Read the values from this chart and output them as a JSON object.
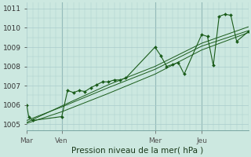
{
  "bg_color": "#cce8e0",
  "grid_color": "#aacccc",
  "line_color": "#1a5c1a",
  "marker_color": "#1a5c1a",
  "title": "Pression niveau de la mer( hPa )",
  "ylim": [
    1004.7,
    1011.3
  ],
  "yticks": [
    1005,
    1006,
    1007,
    1008,
    1009,
    1010,
    1011
  ],
  "day_labels": [
    "Mar",
    "Ven",
    "Mer",
    "Jeu"
  ],
  "day_positions": [
    0,
    18,
    66,
    90
  ],
  "total_hours": 114,
  "line1_x": [
    0,
    1,
    3,
    18,
    21,
    24,
    27,
    30,
    33,
    36,
    39,
    42,
    45,
    48,
    51,
    66,
    69,
    72,
    75,
    78,
    81,
    90,
    93,
    96,
    99,
    102,
    105,
    108,
    114
  ],
  "line1_y": [
    1006.0,
    1005.4,
    1005.2,
    1005.4,
    1006.75,
    1006.65,
    1006.75,
    1006.7,
    1006.9,
    1007.05,
    1007.2,
    1007.2,
    1007.3,
    1007.3,
    1007.4,
    1009.0,
    1008.55,
    1008.0,
    1008.1,
    1008.2,
    1007.6,
    1009.65,
    1009.55,
    1008.05,
    1010.6,
    1010.7,
    1010.65,
    1009.3,
    1009.8
  ],
  "line2_x": [
    0,
    18,
    42,
    66,
    90,
    114
  ],
  "line2_y": [
    1005.2,
    1005.9,
    1006.9,
    1007.85,
    1009.05,
    1009.85
  ],
  "line3_x": [
    0,
    18,
    42,
    66,
    90,
    114
  ],
  "line3_y": [
    1005.05,
    1005.65,
    1006.6,
    1007.6,
    1008.85,
    1009.75
  ],
  "line4_x": [
    0,
    18,
    42,
    66,
    90,
    114
  ],
  "line4_y": [
    1005.1,
    1005.95,
    1007.05,
    1008.0,
    1009.2,
    1010.05
  ],
  "vline_positions": [
    18,
    66,
    90
  ],
  "figsize": [
    3.2,
    2.0
  ],
  "dpi": 100,
  "title_fontsize": 7.5,
  "tick_fontsize": 6.5
}
